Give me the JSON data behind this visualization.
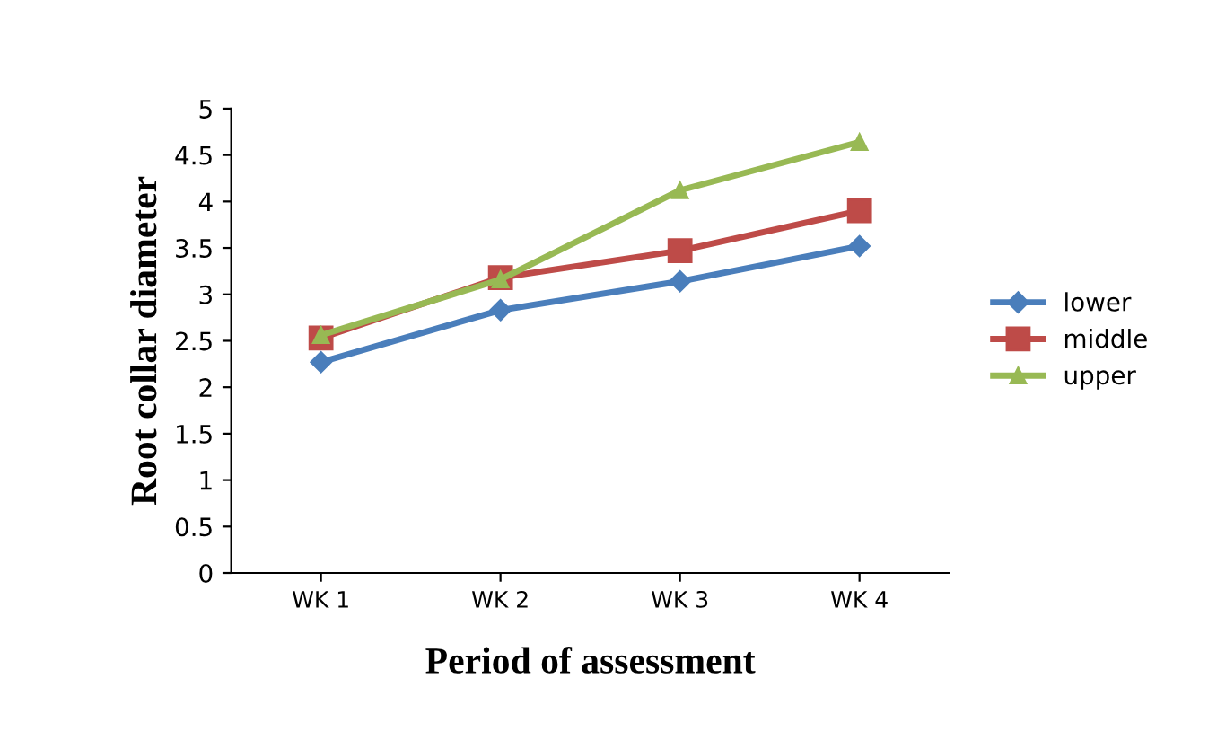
{
  "chart_data": {
    "type": "line",
    "xlabel": "Period of assessment",
    "ylabel": "Root collar diameter",
    "categories": [
      "WK 1",
      "WK 2",
      "WK 3",
      "WK 4"
    ],
    "series": [
      {
        "name": "lower",
        "color": "#4a7ebb",
        "marker": "diamond",
        "values": [
          2.27,
          2.83,
          3.14,
          3.52
        ]
      },
      {
        "name": "middle",
        "color": "#be4b48",
        "marker": "square",
        "values": [
          2.53,
          3.18,
          3.47,
          3.9
        ]
      },
      {
        "name": "upper",
        "color": "#98b954",
        "marker": "triangle",
        "values": [
          2.56,
          3.16,
          4.12,
          4.64
        ]
      }
    ],
    "ylim": [
      0,
      5
    ],
    "yticks": [
      0,
      0.5,
      1,
      1.5,
      2,
      2.5,
      3,
      3.5,
      4,
      4.5,
      5
    ],
    "grid": false,
    "legend": "right",
    "line_style": "solid"
  }
}
